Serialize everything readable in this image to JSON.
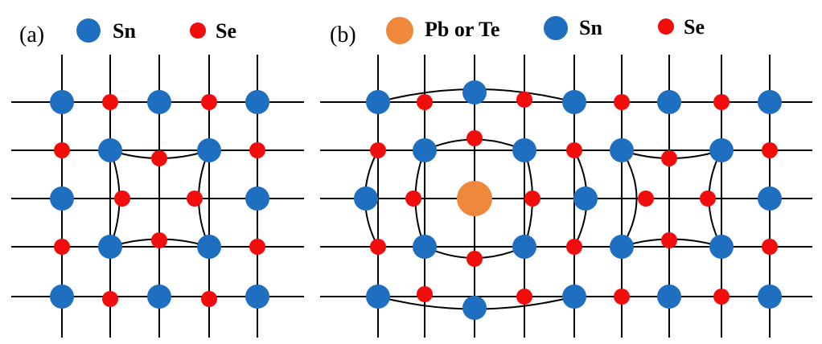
{
  "panels": [
    {
      "label": "(a)",
      "legend": [
        "Sn",
        "Se"
      ]
    },
    {
      "label": "(b)",
      "legend": [
        "Pb or Te",
        "Sn",
        "Se"
      ]
    }
  ]
}
